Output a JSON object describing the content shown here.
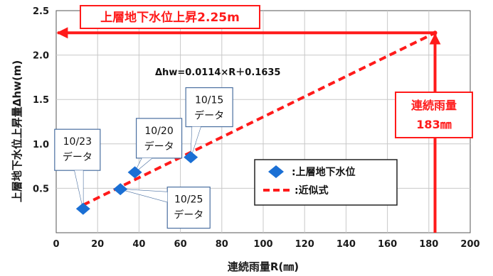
{
  "chart_data": {
    "type": "scatter",
    "title": "",
    "xlabel": "連続雨量R(㎜)",
    "ylabel": "上層地下水位上昇量Δhw(m)",
    "xlim": [
      0,
      200
    ],
    "ylim": [
      0,
      2.5
    ],
    "x_ticks": [
      "0",
      "20",
      "40",
      "60",
      "80",
      "100",
      "120",
      "140",
      "160",
      "180",
      "200"
    ],
    "y_ticks": [
      "0.5",
      "1.0",
      "1.5",
      "2.0",
      "2.5"
    ],
    "grid": true,
    "series": [
      {
        "name": ":上層地下水位",
        "marker": "diamond",
        "color": "#1a6fd4",
        "points": [
          {
            "x": 13,
            "y": 0.27,
            "label_lines": [
              "10/23",
              "データ"
            ]
          },
          {
            "x": 31,
            "y": 0.49,
            "label_lines": [
              "10/25",
              "データ"
            ]
          },
          {
            "x": 38,
            "y": 0.68,
            "label_lines": [
              "10/20",
              "データ"
            ]
          },
          {
            "x": 65,
            "y": 0.85,
            "label_lines": [
              "10/15",
              "データ"
            ]
          }
        ]
      },
      {
        "name": ":近似式",
        "type": "line",
        "style": "dashed",
        "color": "#ff1a1a",
        "x": [
          13,
          183
        ],
        "y": [
          0.312,
          2.25
        ]
      }
    ],
    "formula": "Δhw=0.0114×R＋0.1635",
    "annotations": {
      "rise": "上層地下水位上昇2.25m",
      "rainfall_lines": [
        "連続雨量",
        "183㎜"
      ],
      "marker_x": 183,
      "marker_y": 2.25
    },
    "legend_position": "inside-right"
  }
}
